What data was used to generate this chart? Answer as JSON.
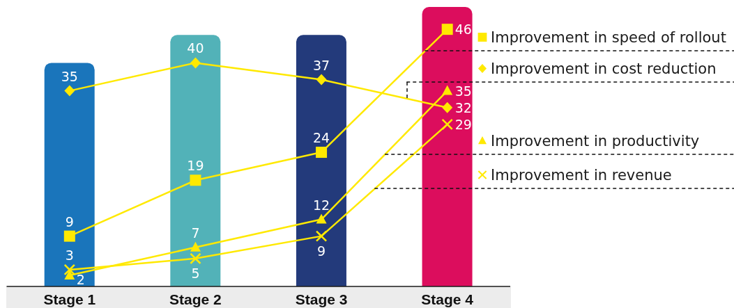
{
  "chart_data": {
    "type": "line",
    "categories": [
      "Stage 1",
      "Stage 2",
      "Stage 3",
      "Stage 4"
    ],
    "series": [
      {
        "type": "bar",
        "colors": [
          "#1a75bb",
          "#52b2b8",
          "#233a7b",
          "#dc0d5d"
        ],
        "values": [
          40,
          45,
          45,
          50
        ]
      },
      {
        "name": "Improvement in speed of rollout",
        "color": "#ffe900",
        "marker": "square",
        "values": [
          9,
          19,
          24,
          46
        ],
        "value_labels": [
          "9",
          "19",
          "24",
          "46"
        ]
      },
      {
        "name": "Improvement in cost reduction",
        "color": "#ffe900",
        "marker": "diamond",
        "values": [
          35,
          40,
          37,
          32
        ],
        "value_labels": [
          "35",
          "40",
          "37",
          "32"
        ]
      },
      {
        "name": "Improvement in productivity",
        "color": "#ffe900",
        "marker": "triangle",
        "values": [
          2,
          7,
          12,
          35
        ],
        "value_labels": [
          "2",
          "7",
          "12",
          "35"
        ]
      },
      {
        "name": "Improvement in revenue",
        "color": "#ffe900",
        "marker": "cross",
        "values": [
          3,
          5,
          9,
          29
        ],
        "value_labels": [
          "3",
          "5",
          "9",
          "29"
        ]
      }
    ],
    "ylim": [
      0,
      50
    ],
    "tick_labels": "x",
    "legend": "right"
  }
}
